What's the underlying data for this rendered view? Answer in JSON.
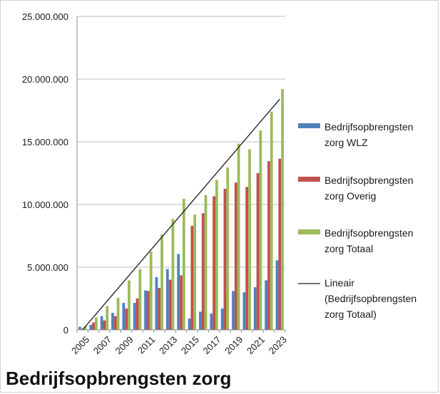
{
  "chart_data": {
    "type": "bar",
    "title": "Bedrijfsopbrengsten zorg",
    "x": [
      2005,
      2006,
      2007,
      2008,
      2009,
      2010,
      2011,
      2012,
      2013,
      2014,
      2015,
      2016,
      2017,
      2018,
      2019,
      2020,
      2021,
      2022,
      2023
    ],
    "x_tick_labels": [
      "2005",
      "2007",
      "2009",
      "2011",
      "2013",
      "2015",
      "2017",
      "2019",
      "2021",
      "2023"
    ],
    "y_tick_labels": [
      "0",
      "5.000.000",
      "10.000.000",
      "15.000.000",
      "20.000.000",
      "25.000.000"
    ],
    "y_ticks": [
      0,
      5000000,
      10000000,
      15000000,
      20000000,
      25000000
    ],
    "ylim": [
      0,
      25000000
    ],
    "grid": "horizontal",
    "legend_position": "right",
    "series": [
      {
        "name": "Bedrijfsopbrengsten zorg WLZ",
        "color": "#4f81bd",
        "values": [
          250000,
          400000,
          1100000,
          1350000,
          2150000,
          2150000,
          3150000,
          4200000,
          4850000,
          6050000,
          900000,
          1450000,
          1300000,
          1700000,
          3100000,
          3000000,
          3400000,
          3950000,
          5550000
        ]
      },
      {
        "name": "Bedrijfsopbrengsten zorg Overig",
        "color": "#c0504d",
        "values": [
          100000,
          600000,
          750000,
          1100000,
          1700000,
          2500000,
          3100000,
          3350000,
          4000000,
          4350000,
          8300000,
          9300000,
          10650000,
          11250000,
          11750000,
          11400000,
          12500000,
          13450000,
          13650000
        ]
      },
      {
        "name": "Bedrijfsopbrengsten zorg Totaal",
        "color": "#9bbb59",
        "values": [
          300000,
          1000000,
          1900000,
          2550000,
          3950000,
          4850000,
          6250000,
          7600000,
          8850000,
          10450000,
          9200000,
          10750000,
          11950000,
          12950000,
          14850000,
          14400000,
          15900000,
          17400000,
          19200000
        ]
      }
    ],
    "trendline": {
      "name": "Lineair (Bedrijfsopbrengsten zorg Totaal)",
      "color": "#1a1a1a",
      "start": [
        2005,
        0
      ],
      "end": [
        2023,
        18400000
      ]
    }
  },
  "legend": {
    "wlz": [
      "Bedrijfsopbrengsten",
      "zorg WLZ"
    ],
    "overig": [
      "Bedrijfsopbrengsten",
      "zorg Overig"
    ],
    "totaal": [
      "Bedrijfsopbrengsten",
      "zorg Totaal"
    ],
    "lineair": [
      "Lineair",
      "(Bedrijfsopbrengsten",
      "zorg Totaal)"
    ]
  }
}
